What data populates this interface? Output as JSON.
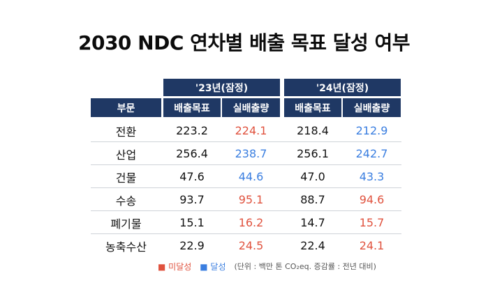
{
  "title": "2030 NDC 연차별 배출 목표 달성 여부",
  "table": {
    "category_header": "부문",
    "years": [
      {
        "label": "'23년(잠정)",
        "target_header": "배출목표",
        "actual_header": "실배출량"
      },
      {
        "label": "'24년(잠정)",
        "target_header": "배출목표",
        "actual_header": "실배출량"
      }
    ],
    "rows": [
      {
        "category": "전환",
        "t23": "223.2",
        "a23": "224.1",
        "s23": "미달성",
        "t24": "218.4",
        "a24": "212.9",
        "s24": "달성"
      },
      {
        "category": "산업",
        "t23": "256.4",
        "a23": "238.7",
        "s23": "달성",
        "t24": "256.1",
        "a24": "242.7",
        "s24": "달성"
      },
      {
        "category": "건물",
        "t23": "47.6",
        "a23": "44.6",
        "s23": "달성",
        "t24": "47.0",
        "a24": "43.3",
        "s24": "달성"
      },
      {
        "category": "수송",
        "t23": "93.7",
        "a23": "95.1",
        "s23": "미달성",
        "t24": "88.7",
        "a24": "94.6",
        "s24": "미달성"
      },
      {
        "category": "폐기물",
        "t23": "15.1",
        "a23": "16.2",
        "s23": "미달성",
        "t24": "14.7",
        "a24": "15.7",
        "s24": "미달성"
      },
      {
        "category": "농축수산",
        "t23": "22.9",
        "a23": "24.5",
        "s23": "미달성",
        "t24": "22.4",
        "a24": "24.1",
        "s24": "미달성"
      }
    ]
  },
  "legend": {
    "not_achieved": "■ 미달성",
    "achieved": "■ 달성",
    "unit_note": "(단위 : 백만 톤 CO₂eq. 증감률 : 전년 대비)"
  },
  "colors": {
    "header_navy": "#1f3864",
    "not_achieved": "#e0523e",
    "achieved": "#3a7ee0"
  }
}
